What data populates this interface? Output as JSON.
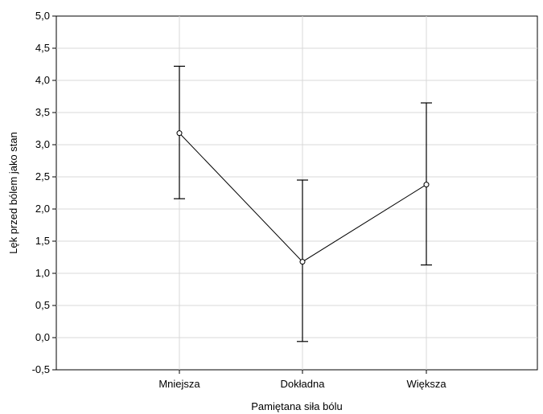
{
  "chart_data": {
    "type": "line",
    "xlabel": "Pamiętana siła bólu",
    "ylabel": "Lęk przed bólem jako stan",
    "categories": [
      "Mniejsza",
      "Dokładna",
      "Większa"
    ],
    "series": [
      {
        "values": [
          3.18,
          1.18,
          2.38
        ],
        "error_low": [
          2.16,
          -0.06,
          1.13
        ],
        "error_high": [
          4.22,
          2.45,
          3.65
        ]
      }
    ],
    "ylim": [
      -0.5,
      5.0
    ],
    "yticks": [
      -0.5,
      0.0,
      0.5,
      1.0,
      1.5,
      2.0,
      2.5,
      3.0,
      3.5,
      4.0,
      4.5,
      5.0
    ],
    "ytick_labels": [
      "-0,5",
      "0,0",
      "0,5",
      "1,0",
      "1,5",
      "2,0",
      "2,5",
      "3,0",
      "3,5",
      "4,0",
      "4,5",
      "5,0"
    ],
    "grid": true,
    "colors": {
      "line": "#000000",
      "grid": "#d9d9d9",
      "axis": "#000000"
    }
  }
}
